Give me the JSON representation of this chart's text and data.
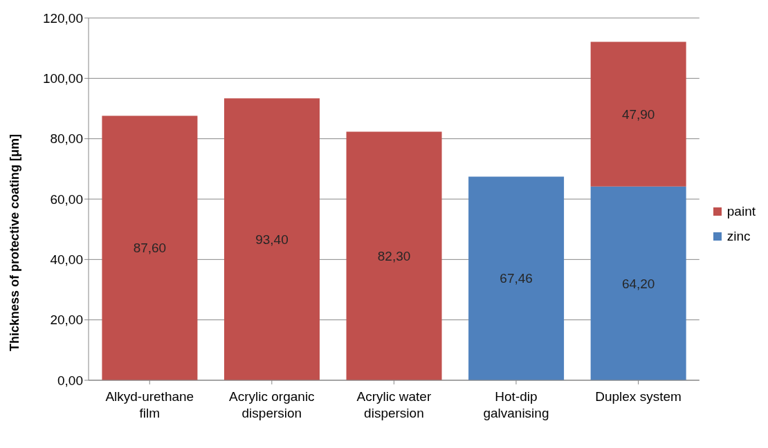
{
  "chart_data": {
    "type": "bar",
    "stacked": true,
    "ylabel": "Thickness of protective coating  [μm]",
    "categories": [
      "Alkyd-urethane film",
      "Acrylic organic dispersion",
      "Acrylic water dispersion",
      "Hot-dip galvanising",
      "Duplex system"
    ],
    "series": [
      {
        "name": "zinc",
        "color": "#4f81bd",
        "values": [
          null,
          null,
          null,
          67.46,
          64.2
        ],
        "value_labels": [
          null,
          null,
          null,
          "67,46",
          "64,20"
        ]
      },
      {
        "name": "paint",
        "color": "#c0504d",
        "values": [
          87.6,
          93.4,
          82.3,
          null,
          47.9
        ],
        "value_labels": [
          "87,60",
          "93,40",
          "82,30",
          null,
          "47,90"
        ]
      }
    ],
    "ylim": [
      0,
      120
    ],
    "yticks": [
      {
        "value": 0,
        "label": "0,00"
      },
      {
        "value": 20,
        "label": "20,00"
      },
      {
        "value": 40,
        "label": "40,00"
      },
      {
        "value": 60,
        "label": "60,00"
      },
      {
        "value": 80,
        "label": "80,00"
      },
      {
        "value": 100,
        "label": "100,00"
      },
      {
        "value": 120,
        "label": "120,00"
      }
    ],
    "grid": "y",
    "legend": "right"
  }
}
